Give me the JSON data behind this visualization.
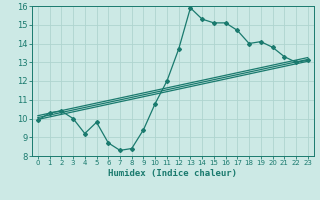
{
  "xlabel": "Humidex (Indice chaleur)",
  "ylabel": "",
  "bg_color": "#cce9e5",
  "grid_color": "#afd4cf",
  "line_color": "#1a7a6e",
  "xlim": [
    -0.5,
    23.5
  ],
  "ylim": [
    8,
    16
  ],
  "xticks": [
    0,
    1,
    2,
    3,
    4,
    5,
    6,
    7,
    8,
    9,
    10,
    11,
    12,
    13,
    14,
    15,
    16,
    17,
    18,
    19,
    20,
    21,
    22,
    23
  ],
  "yticks": [
    8,
    9,
    10,
    11,
    12,
    13,
    14,
    15,
    16
  ],
  "line1_x": [
    0,
    1,
    2,
    3,
    4,
    5,
    6,
    7,
    8,
    9,
    10,
    11,
    12,
    13,
    14,
    15,
    16,
    17,
    18,
    19,
    20,
    21,
    22,
    23
  ],
  "line1_y": [
    9.9,
    10.3,
    10.4,
    10.0,
    9.2,
    9.8,
    8.7,
    8.3,
    8.4,
    9.4,
    10.8,
    12.0,
    13.7,
    15.9,
    15.3,
    15.1,
    15.1,
    14.7,
    14.0,
    14.1,
    13.8,
    13.3,
    13.0,
    13.1
  ],
  "line2_x": [
    0,
    23
  ],
  "line2_y": [
    10.05,
    13.15
  ],
  "line3_x": [
    0,
    23
  ],
  "line3_y": [
    10.15,
    13.25
  ],
  "line4_x": [
    0,
    23
  ],
  "line4_y": [
    9.95,
    13.05
  ]
}
